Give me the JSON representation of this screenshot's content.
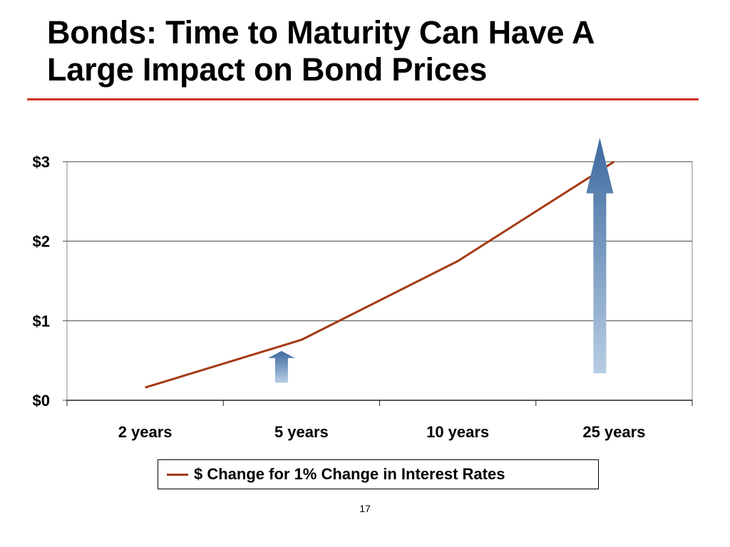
{
  "slide": {
    "title_line1": "Bonds:  Time to Maturity Can Have A",
    "title_line2": "Large Impact on Bond Prices",
    "page_number": "17",
    "rule_color": "#d0331e"
  },
  "chart_data": {
    "type": "line",
    "title": "",
    "xlabel": "",
    "ylabel": "",
    "categories": [
      "2 years",
      "5 years",
      "10 years",
      "25 years"
    ],
    "series": [
      {
        "name": "$ Change for 1% Change in Interest Rates",
        "values": [
          0.16,
          0.76,
          1.75,
          3.0
        ],
        "color": "#a33a12"
      }
    ],
    "ylim": [
      0,
      3
    ],
    "yticks": [
      0,
      1,
      2,
      3
    ],
    "ytick_labels": [
      "$0",
      "$1",
      "$2",
      "$3"
    ],
    "grid": true,
    "legend_position": "bottom",
    "annotations": [
      {
        "type": "up-arrow",
        "category": "5 years",
        "from": 0.22,
        "to": 0.62,
        "size": "small"
      },
      {
        "type": "up-arrow",
        "category": "25 years",
        "from": 0.34,
        "to": 3.3,
        "size": "large"
      }
    ]
  }
}
